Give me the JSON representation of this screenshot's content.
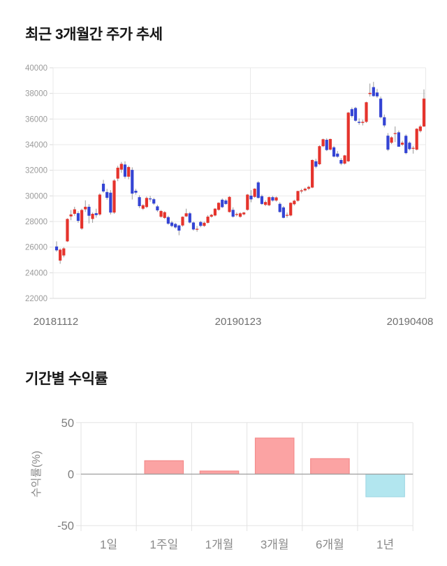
{
  "page": {
    "background": "#ffffff"
  },
  "chart_data": [
    {
      "type": "candlestick",
      "title": "최근 3개월간 주가 추세",
      "ylabel": "",
      "xlabel": "",
      "ylim": [
        22000,
        40000
      ],
      "y_ticks": [
        40000,
        38000,
        36000,
        34000,
        32000,
        30000,
        28000,
        26000,
        24000,
        22000
      ],
      "x_tick_labels": [
        "20181112",
        "20190123",
        "20190408"
      ],
      "grid": true,
      "legend": false,
      "colors": {
        "up": "#e5332c",
        "down": "#3444d4",
        "wick": "#999999",
        "grid": "#e9e9e9",
        "axis": "#d9d9d9",
        "y_tick_label": "#9b9b9b",
        "x_tick_label": "#6f6f6f"
      },
      "candles_ohlc": [
        [
          26050,
          26450,
          25650,
          25750
        ],
        [
          24950,
          25900,
          24700,
          25800
        ],
        [
          25350,
          26000,
          25200,
          25900
        ],
        [
          26450,
          28250,
          26400,
          28200
        ],
        [
          28400,
          28900,
          28100,
          28550
        ],
        [
          28600,
          29150,
          28450,
          28950
        ],
        [
          28650,
          28800,
          27900,
          28050
        ],
        [
          27450,
          29000,
          27350,
          28900
        ],
        [
          28950,
          29650,
          28750,
          29150
        ],
        [
          29150,
          29350,
          27850,
          28450
        ],
        [
          28200,
          28700,
          27900,
          28600
        ],
        [
          28650,
          29000,
          28300,
          28500
        ],
        [
          28550,
          30200,
          28450,
          30100
        ],
        [
          30950,
          31250,
          30250,
          30350
        ],
        [
          30300,
          30550,
          29700,
          29850
        ],
        [
          30250,
          30450,
          28550,
          28700
        ],
        [
          28700,
          31300,
          28600,
          31200
        ],
        [
          31350,
          32350,
          31150,
          32200
        ],
        [
          32050,
          32650,
          31800,
          32500
        ],
        [
          32450,
          32700,
          31350,
          31500
        ],
        [
          31500,
          32350,
          31300,
          32250
        ],
        [
          32030,
          32230,
          29720,
          30180
        ],
        [
          30400,
          30550,
          30100,
          30250
        ],
        [
          29900,
          30050,
          29050,
          29200
        ],
        [
          29000,
          29350,
          28900,
          29270
        ],
        [
          29130,
          29950,
          29050,
          29840
        ],
        [
          29800,
          30000,
          29550,
          29750
        ],
        [
          29740,
          29850,
          29300,
          29400
        ],
        [
          29180,
          29300,
          28750,
          28870
        ],
        [
          28370,
          28900,
          28300,
          28820
        ],
        [
          28280,
          28800,
          28200,
          28730
        ],
        [
          28340,
          28450,
          27750,
          27830
        ],
        [
          27920,
          28050,
          27550,
          27650
        ],
        [
          27810,
          27900,
          27450,
          27540
        ],
        [
          27690,
          27750,
          26930,
          27290
        ],
        [
          27690,
          28400,
          27600,
          28370
        ],
        [
          28400,
          29000,
          28350,
          28640
        ],
        [
          28640,
          28750,
          27850,
          27920
        ],
        [
          27920,
          28000,
          27290,
          27380
        ],
        [
          27380,
          27650,
          27200,
          27430
        ],
        [
          27960,
          28050,
          27550,
          27660
        ],
        [
          27660,
          27990,
          27580,
          27900
        ],
        [
          27900,
          28500,
          27850,
          28380
        ],
        [
          28380,
          28600,
          28300,
          28520
        ],
        [
          28470,
          29050,
          28400,
          29000
        ],
        [
          28910,
          29500,
          28850,
          29460
        ],
        [
          29700,
          29800,
          29050,
          29120
        ],
        [
          29640,
          29760,
          29300,
          29370
        ],
        [
          28740,
          29980,
          28700,
          29920
        ],
        [
          28910,
          29100,
          28300,
          28380
        ],
        [
          28520,
          28700,
          28400,
          28580
        ],
        [
          28370,
          28720,
          28300,
          28640
        ],
        [
          28560,
          28750,
          28480,
          28700
        ],
        [
          28910,
          30150,
          28850,
          30100
        ],
        [
          30020,
          30450,
          29500,
          29730
        ],
        [
          29920,
          30600,
          29850,
          30560
        ],
        [
          31050,
          31150,
          29800,
          29840
        ],
        [
          29980,
          30100,
          29300,
          29370
        ],
        [
          29300,
          29650,
          29200,
          29520
        ],
        [
          29270,
          29960,
          29200,
          29900
        ],
        [
          29900,
          30000,
          29550,
          29640
        ],
        [
          29640,
          29950,
          29550,
          29880
        ],
        [
          29380,
          29500,
          28700,
          28740
        ],
        [
          29100,
          29200,
          28250,
          28290
        ],
        [
          28450,
          28700,
          28300,
          28520
        ],
        [
          28470,
          29500,
          28400,
          29460
        ],
        [
          29350,
          29700,
          29250,
          29620
        ],
        [
          29620,
          30400,
          29550,
          30380
        ],
        [
          30350,
          30550,
          30200,
          30430
        ],
        [
          30430,
          30650,
          30350,
          30560
        ],
        [
          30560,
          30800,
          30450,
          30700
        ],
        [
          30650,
          32850,
          30600,
          32800
        ],
        [
          32700,
          32900,
          32150,
          32280
        ],
        [
          32470,
          33950,
          32400,
          33880
        ],
        [
          33880,
          34470,
          33800,
          34420
        ],
        [
          34380,
          34500,
          33500,
          33580
        ],
        [
          33610,
          34470,
          33550,
          34440
        ],
        [
          33790,
          33900,
          33000,
          33070
        ],
        [
          33300,
          33500,
          32980,
          33060
        ],
        [
          32800,
          32950,
          32400,
          32520
        ],
        [
          32520,
          33200,
          32450,
          33160
        ],
        [
          32700,
          36550,
          32650,
          36500
        ],
        [
          36770,
          36900,
          36100,
          36230
        ],
        [
          36860,
          36950,
          35800,
          35870
        ],
        [
          35780,
          36050,
          35550,
          35700
        ],
        [
          35700,
          35950,
          35500,
          35780
        ],
        [
          35780,
          37350,
          35700,
          37310
        ],
        [
          37950,
          38770,
          37750,
          38040
        ],
        [
          38490,
          38900,
          37750,
          37790
        ],
        [
          38070,
          38350,
          37650,
          37770
        ],
        [
          37590,
          37750,
          36050,
          36140
        ],
        [
          36140,
          36350,
          35350,
          35500
        ],
        [
          34700,
          34900,
          33500,
          33610
        ],
        [
          34150,
          34650,
          34050,
          34570
        ],
        [
          34850,
          35420,
          34200,
          34900
        ],
        [
          34960,
          35100,
          33840,
          33840
        ],
        [
          34000,
          34300,
          33900,
          34150
        ],
        [
          34690,
          34800,
          33250,
          33340
        ],
        [
          34150,
          34250,
          33550,
          33650
        ],
        [
          33700,
          33900,
          33300,
          33750
        ],
        [
          33610,
          35280,
          33550,
          35240
        ],
        [
          35060,
          35550,
          34950,
          35420
        ],
        [
          35420,
          38310,
          35380,
          37590
        ]
      ]
    },
    {
      "type": "bar",
      "title": "기간별 수익률",
      "ylabel": "수익률(%)",
      "xlabel": "",
      "categories": [
        "1일",
        "1주일",
        "1개월",
        "3개월",
        "6개월",
        "1년"
      ],
      "values": [
        0,
        13,
        3,
        35,
        15,
        -22
      ],
      "ylim": [
        -50,
        50
      ],
      "y_ticks": [
        50,
        0,
        -50
      ],
      "grid": true,
      "legend": false,
      "colors": {
        "positive_fill": "#fba3a3",
        "positive_stroke": "#f48b8b",
        "negative_fill": "#b2e6ef",
        "negative_stroke": "#a2d9e6",
        "grid": "#e3e3e3",
        "zero_line": "#9e9e9e",
        "tick_label": "#7d7d7d",
        "category_label": "#8a8a8a",
        "axis_title": "#8a8a8a"
      }
    }
  ]
}
